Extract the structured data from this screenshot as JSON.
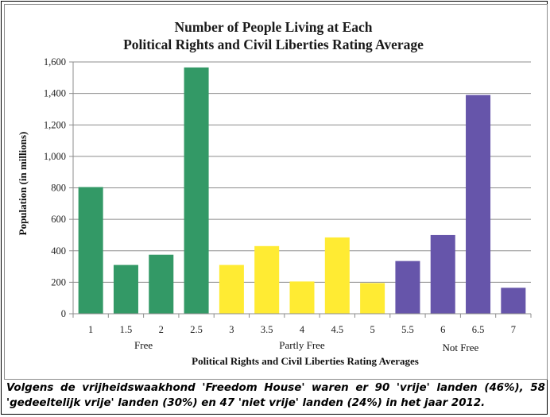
{
  "chart_data": {
    "type": "bar",
    "title": [
      "Number of People Living at Each",
      "Political Rights and Civil Liberties Rating Average"
    ],
    "xlabel": "Political Rights and Civil Liberties Rating Averages",
    "ylabel": "Population (in millions)",
    "ylim": [
      0,
      1600
    ],
    "yticks": [
      0,
      200,
      400,
      600,
      800,
      1000,
      1200,
      1400,
      1600
    ],
    "ytick_labels": [
      "0",
      "200",
      "400",
      "600",
      "800",
      "1,000",
      "1,200",
      "1,400",
      "1,600"
    ],
    "grid": "horizontal",
    "categories": [
      "1",
      "1.5",
      "2",
      "2.5",
      "3",
      "3.5",
      "4",
      "4.5",
      "5",
      "5.5",
      "6",
      "6.5",
      "7"
    ],
    "values": [
      805,
      310,
      375,
      1565,
      310,
      430,
      205,
      485,
      195,
      335,
      500,
      1390,
      165
    ],
    "groups": [
      {
        "label": "Free",
        "categories": [
          "1",
          "1.5",
          "2",
          "2.5"
        ],
        "color": "#339966"
      },
      {
        "label": "Partly Free",
        "categories": [
          "3",
          "3.5",
          "4",
          "4.5",
          "5"
        ],
        "color": "#ffeb33"
      },
      {
        "label": "Not Free",
        "categories": [
          "5.5",
          "6",
          "6.5",
          "7"
        ],
        "color": "#6655aa"
      }
    ]
  },
  "caption": "Volgens de vrijheidswaakhond 'Freedom House' waren er 90 'vrije' landen (46%), 58 'gedeeltelijk vrije' landen (30%) en 47 'niet vrije' landen (24%) in het jaar 2012."
}
